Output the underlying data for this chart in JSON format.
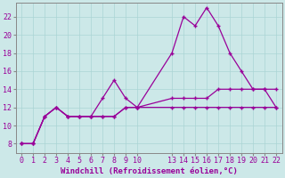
{
  "xlabel": "Windchill (Refroidissement éolien,°C)",
  "bg_color": "#cce8e8",
  "line_color": "#990099",
  "x_hours": [
    0,
    1,
    2,
    3,
    4,
    5,
    6,
    7,
    8,
    9,
    10,
    13,
    14,
    15,
    16,
    17,
    18,
    19,
    20,
    21,
    22
  ],
  "windchill_line": [
    8,
    8,
    11,
    12,
    11,
    11,
    11,
    13,
    15,
    13,
    12,
    18,
    22,
    21,
    23,
    21,
    18,
    16,
    14,
    14,
    14
  ],
  "second_line": [
    8,
    8,
    11,
    12,
    11,
    11,
    11,
    11,
    11,
    12,
    12,
    13,
    13,
    13,
    13,
    14,
    14,
    14,
    14,
    14,
    12
  ],
  "temp_line": [
    8,
    8,
    11,
    12,
    11,
    11,
    11,
    11,
    11,
    12,
    12,
    12,
    12,
    12,
    12,
    12,
    12,
    12,
    12,
    12,
    12
  ],
  "ylim": [
    7,
    23.5
  ],
  "yticks": [
    8,
    10,
    12,
    14,
    16,
    18,
    20,
    22
  ],
  "xlim": [
    -0.5,
    22.5
  ],
  "xtick_positions": [
    0,
    1,
    2,
    3,
    4,
    5,
    6,
    7,
    8,
    9,
    10,
    13,
    14,
    15,
    16,
    17,
    18,
    19,
    20,
    21,
    22
  ],
  "grid_color": "#aad4d4",
  "xlabel_fontsize": 6.5,
  "tick_fontsize": 6,
  "line_width": 0.9,
  "marker_size": 3
}
